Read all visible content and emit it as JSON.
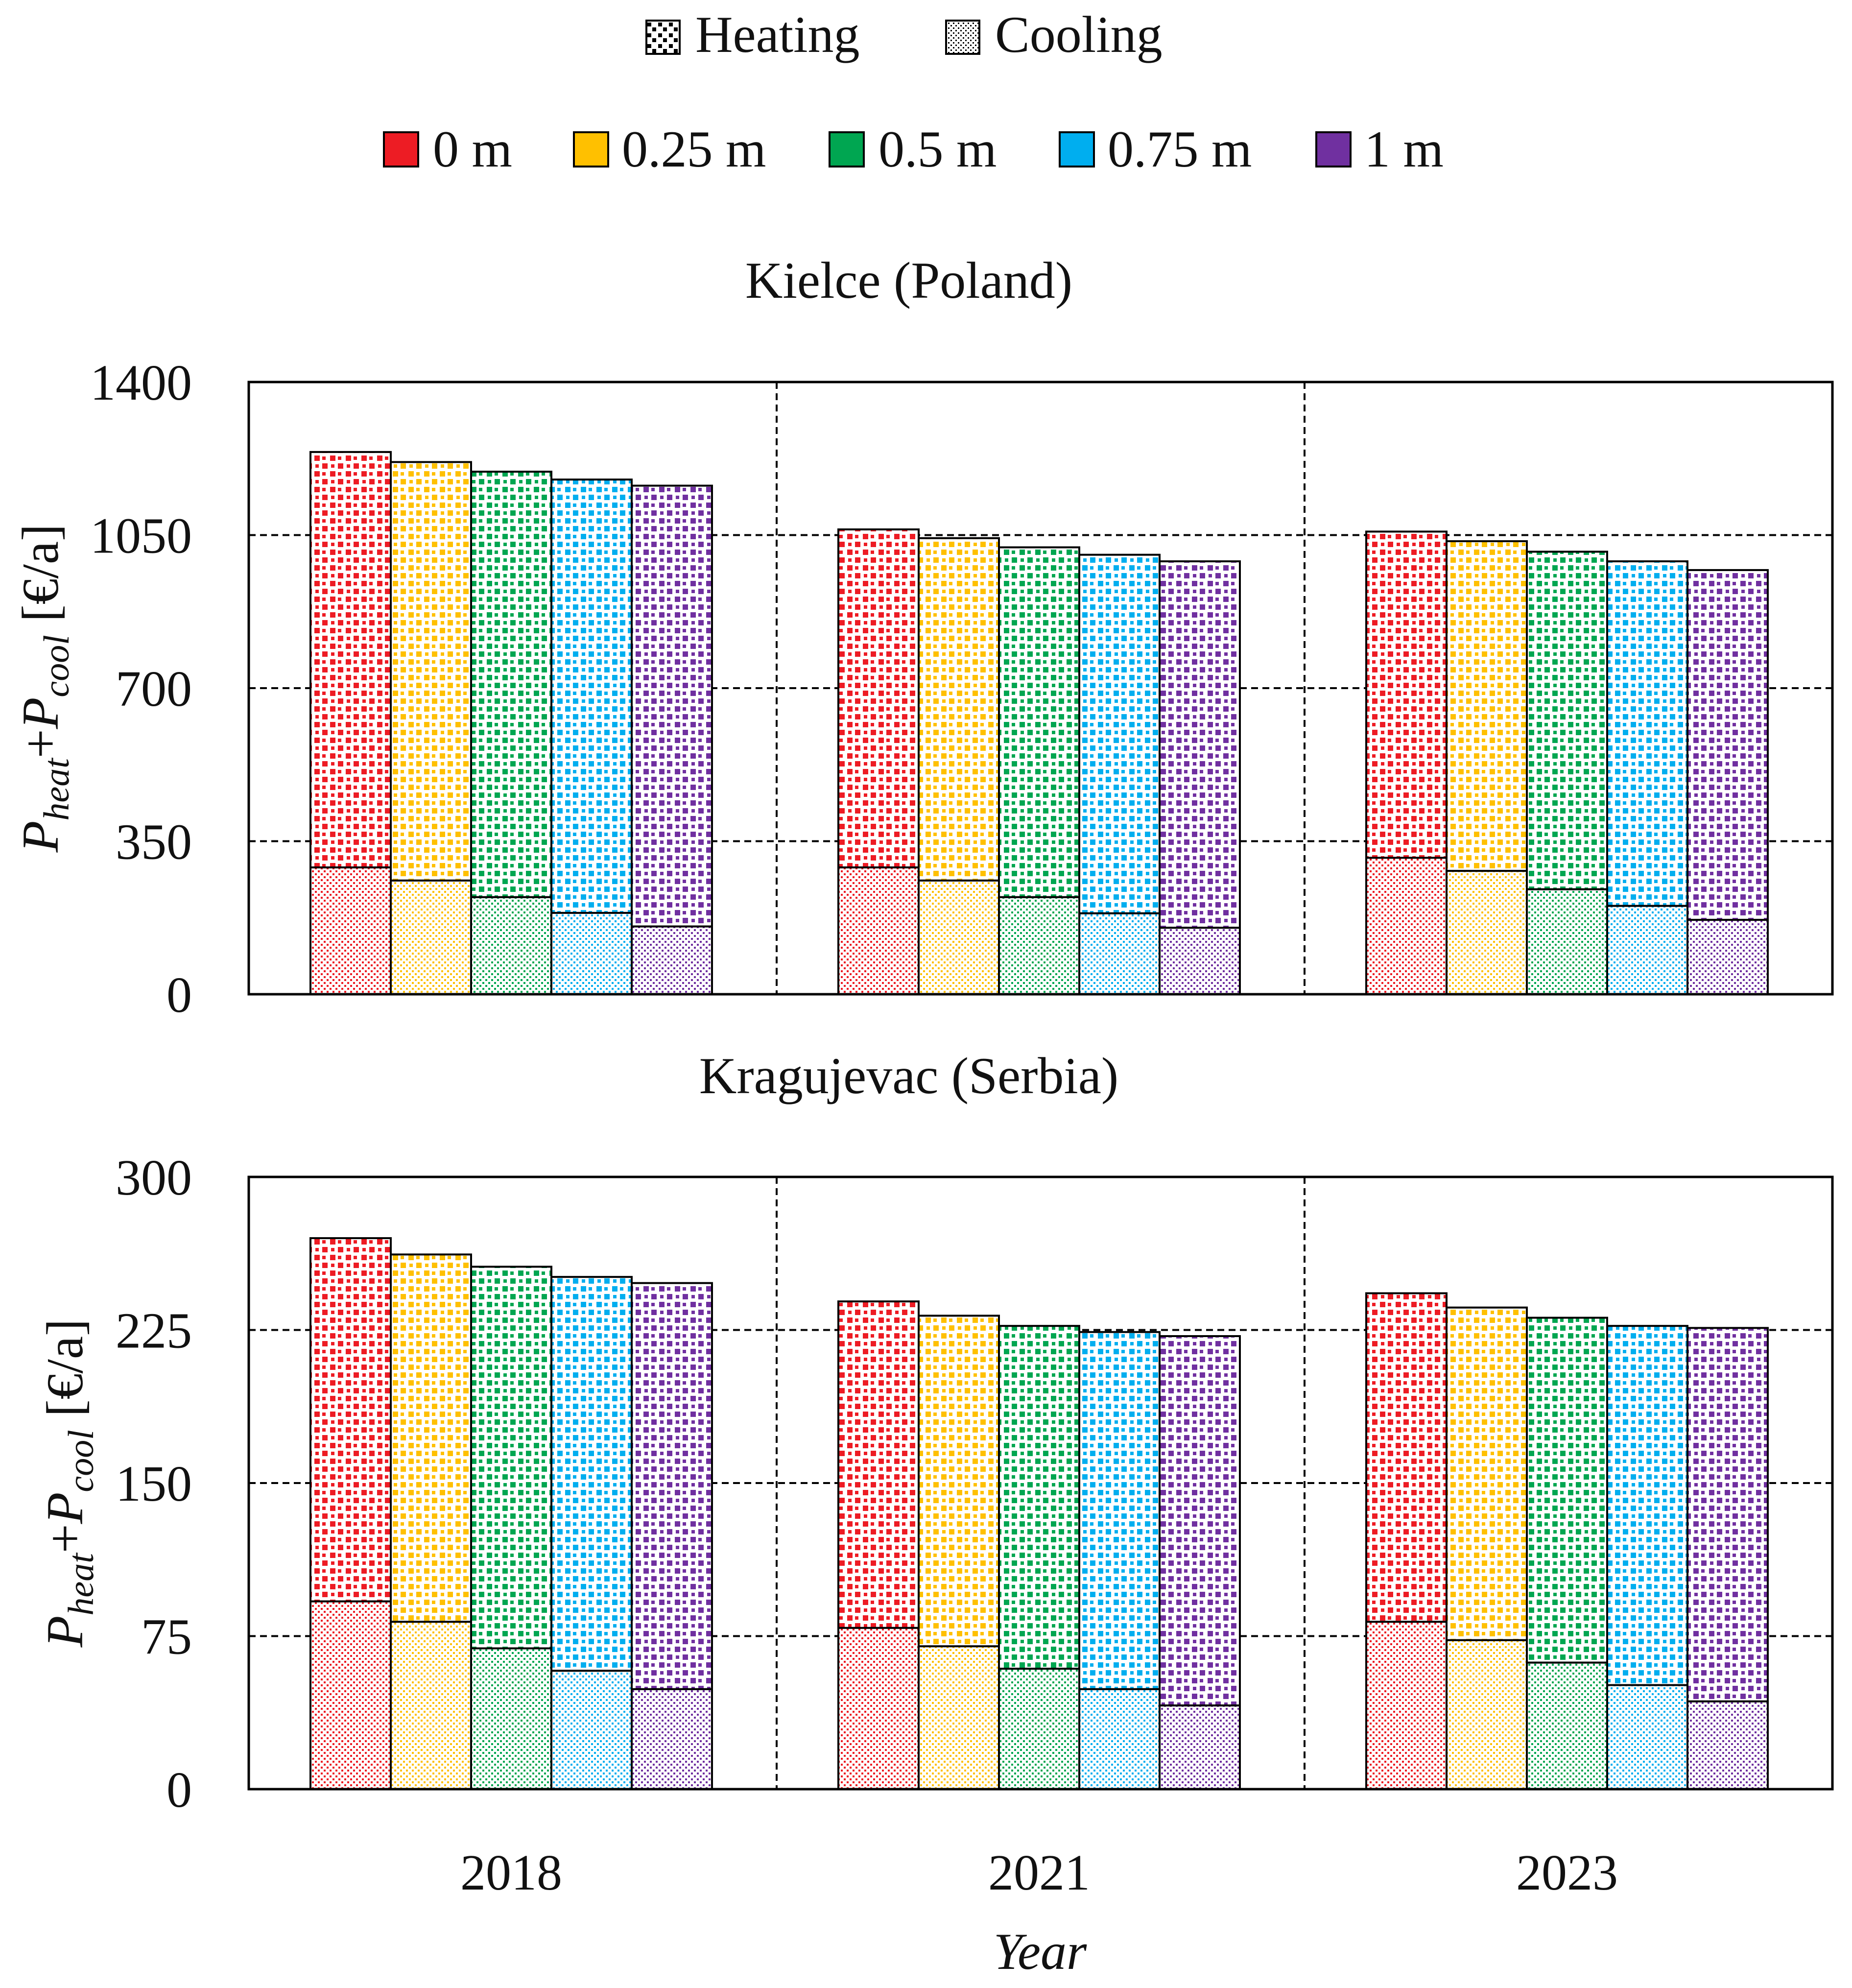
{
  "legend": {
    "types": [
      {
        "key": "heating",
        "label": "Heating",
        "icon": "heating-pattern-icon"
      },
      {
        "key": "cooling",
        "label": "Cooling",
        "icon": "cooling-pattern-icon"
      }
    ],
    "depths": [
      {
        "label": "0 m",
        "color": "#ED1C24"
      },
      {
        "label": "0.25 m",
        "color": "#FFC000"
      },
      {
        "label": "0.5 m",
        "color": "#00A651"
      },
      {
        "label": "0.75 m",
        "color": "#00AEEF"
      },
      {
        "label": "1 m",
        "color": "#7030A0"
      }
    ]
  },
  "xlabel": "Year",
  "ylabel": {
    "p1": "P",
    "sub1": "heat",
    "plus": "+",
    "p2": "P",
    "sub2": "cool",
    "unit": " [€/a]"
  },
  "chart_data": [
    {
      "type": "bar",
      "stacked": true,
      "title": "Kielce (Poland)",
      "categories": [
        "2018",
        "2021",
        "2023"
      ],
      "series_groups": [
        "0 m",
        "0.25 m",
        "0.5 m",
        "0.75 m",
        "1 m"
      ],
      "cooling": [
        [
          290,
          260,
          222,
          186,
          155
        ],
        [
          290,
          260,
          222,
          185,
          152
        ],
        [
          312,
          282,
          240,
          202,
          170
        ]
      ],
      "total": [
        1240,
        1217,
        1195,
        1177,
        1163
      ],
      "total_2021": [
        1063,
        1043,
        1022,
        1005,
        990
      ],
      "total_2023": [
        1058,
        1036,
        1012,
        990,
        970
      ],
      "ylim": [
        0,
        1400
      ],
      "yticks": [
        "0",
        "350",
        "700",
        "1050",
        "1400"
      ],
      "ytick_values": [
        0,
        350,
        700,
        1050,
        1400
      ],
      "grid": true
    },
    {
      "type": "bar",
      "stacked": true,
      "title": "Kragujevac (Serbia)",
      "categories": [
        "2018",
        "2021",
        "2023"
      ],
      "series_groups": [
        "0 m",
        "0.25 m",
        "0.5 m",
        "0.75 m",
        "1 m"
      ],
      "cooling": [
        [
          92,
          82,
          69,
          58,
          49
        ],
        [
          79,
          70,
          59,
          49,
          41
        ],
        [
          82,
          73,
          62,
          51,
          43
        ]
      ],
      "total": [
        270,
        262,
        256,
        251,
        248
      ],
      "total_2021": [
        239,
        232,
        227,
        224,
        222
      ],
      "total_2023": [
        243,
        236,
        231,
        227,
        226
      ],
      "ylim": [
        0,
        300
      ],
      "yticks": [
        "0",
        "75",
        "150",
        "225",
        "300"
      ],
      "ytick_values": [
        0,
        75,
        150,
        225,
        300
      ],
      "grid": true
    }
  ]
}
